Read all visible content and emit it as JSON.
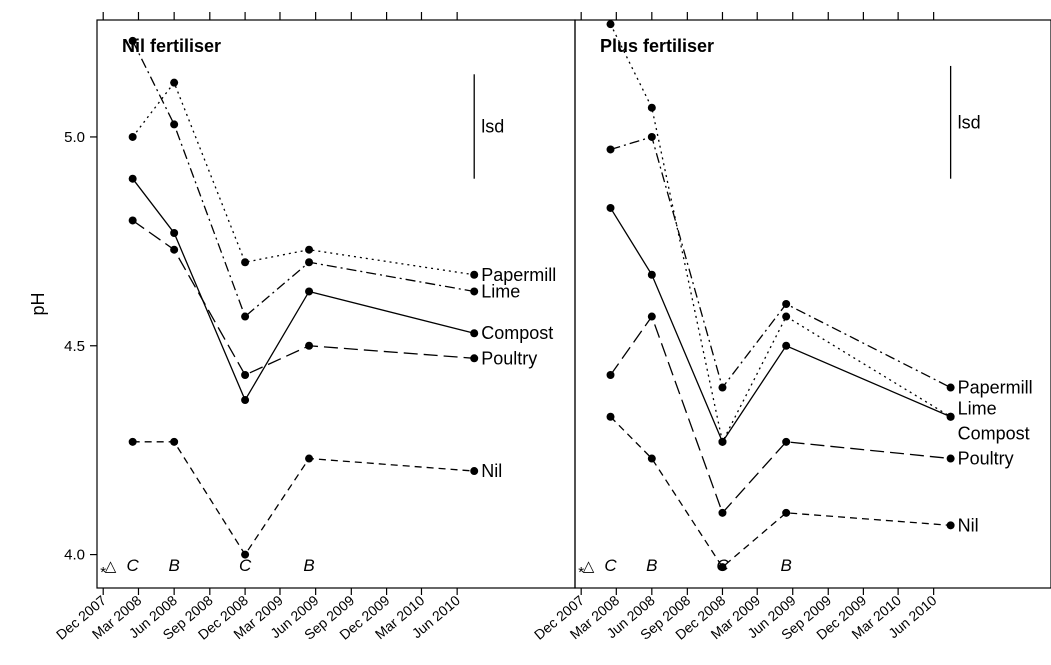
{
  "chart_data": [
    {
      "type": "line",
      "title": "Nil fertiliser",
      "ylabel": "pH",
      "xlabel": "",
      "ylim": [
        3.92,
        5.28
      ],
      "xlim": [
        "2007-11-15",
        "2011-04-01"
      ],
      "yticks": [
        4.0,
        4.5,
        5.0
      ],
      "x_tick_dates": [
        "2007-12-01",
        "2008-03-01",
        "2008-06-01",
        "2008-09-01",
        "2008-12-01",
        "2009-03-01",
        "2009-06-01",
        "2009-09-01",
        "2009-12-01",
        "2010-03-01",
        "2010-06-01"
      ],
      "x_tick_labels": [
        "Dec 2007",
        "Mar 2008",
        "Jun 2008",
        "Sep 2008",
        "Dec 2008",
        "Mar 2009",
        "Jun 2009",
        "Sep 2009",
        "Dec 2009",
        "Mar 2010",
        "Jun 2010"
      ],
      "series": [
        {
          "name": "Papermill",
          "style": "dotted",
          "x": [
            "2008-02-15",
            "2008-06-01",
            "2008-12-01",
            "2009-05-15",
            "2010-07-15"
          ],
          "values": [
            5.0,
            5.13,
            4.7,
            4.73,
            4.67
          ]
        },
        {
          "name": "Lime",
          "style": "dotdash",
          "x": [
            "2008-02-15",
            "2008-06-01",
            "2008-12-01",
            "2009-05-15",
            "2010-07-15"
          ],
          "values": [
            5.23,
            5.03,
            4.57,
            4.7,
            4.63
          ]
        },
        {
          "name": "Compost",
          "style": "solid",
          "x": [
            "2008-02-15",
            "2008-06-01",
            "2008-12-01",
            "2009-05-15",
            "2010-07-15"
          ],
          "values": [
            4.9,
            4.77,
            4.37,
            4.63,
            4.53
          ]
        },
        {
          "name": "Poultry",
          "style": "longdash",
          "x": [
            "2008-02-15",
            "2008-06-01",
            "2008-12-01",
            "2009-05-15",
            "2010-07-15"
          ],
          "values": [
            4.8,
            4.73,
            4.43,
            4.5,
            4.47
          ]
        },
        {
          "name": "Nil",
          "style": "dashed",
          "x": [
            "2008-02-15",
            "2008-06-01",
            "2008-12-01",
            "2009-05-15",
            "2010-07-15"
          ],
          "values": [
            4.27,
            4.27,
            4.0,
            4.23,
            4.2
          ]
        }
      ],
      "lsd": {
        "label": "lsd",
        "x": "2010-07-15",
        "from": 4.9,
        "to": 5.15
      },
      "annotations": [
        {
          "text": "*",
          "x": "2007-12-01",
          "kind": "symbol"
        },
        {
          "text": "△",
          "x": "2007-12-20",
          "kind": "symbol"
        },
        {
          "text": "C",
          "x": "2008-02-15",
          "kind": "letter"
        },
        {
          "text": "B",
          "x": "2008-06-01",
          "kind": "letter"
        },
        {
          "text": "C",
          "x": "2008-12-01",
          "kind": "letter"
        },
        {
          "text": "B",
          "x": "2009-05-15",
          "kind": "letter"
        }
      ]
    },
    {
      "type": "line",
      "title": "Plus fertiliser",
      "ylabel": "",
      "xlabel": "",
      "ylim": [
        3.92,
        5.28
      ],
      "xlim": [
        "2007-11-15",
        "2011-04-01"
      ],
      "yticks": [
        4.0,
        4.5,
        5.0
      ],
      "x_tick_dates": [
        "2007-12-01",
        "2008-03-01",
        "2008-06-01",
        "2008-09-01",
        "2008-12-01",
        "2009-03-01",
        "2009-06-01",
        "2009-09-01",
        "2009-12-01",
        "2010-03-01",
        "2010-06-01"
      ],
      "x_tick_labels": [
        "Dec 2007",
        "Mar 2008",
        "Jun 2008",
        "Sep 2008",
        "Dec 2008",
        "Mar 2009",
        "Jun 2009",
        "Sep 2009",
        "Dec 2009",
        "Mar 2010",
        "Jun 2010"
      ],
      "series": [
        {
          "name": "Papermill",
          "style": "dotdash",
          "x": [
            "2008-02-15",
            "2008-06-01",
            "2008-12-01",
            "2009-05-15",
            "2010-07-15"
          ],
          "values": [
            4.97,
            5.0,
            4.4,
            4.6,
            4.4
          ]
        },
        {
          "name": "Lime",
          "style": "dotted",
          "x": [
            "2008-02-15",
            "2008-06-01",
            "2008-12-01",
            "2009-05-15",
            "2010-07-15"
          ],
          "values": [
            5.27,
            5.07,
            4.27,
            4.57,
            4.33
          ]
        },
        {
          "name": "Compost",
          "style": "solid",
          "x": [
            "2008-02-15",
            "2008-06-01",
            "2008-12-01",
            "2009-05-15",
            "2010-07-15"
          ],
          "values": [
            4.83,
            4.67,
            4.27,
            4.5,
            4.33
          ]
        },
        {
          "name": "Poultry",
          "style": "longdash",
          "x": [
            "2008-02-15",
            "2008-06-01",
            "2008-12-01",
            "2009-05-15",
            "2010-07-15"
          ],
          "values": [
            4.43,
            4.57,
            4.1,
            4.27,
            4.23
          ]
        },
        {
          "name": "Nil",
          "style": "dashed",
          "x": [
            "2008-02-15",
            "2008-06-01",
            "2008-12-01",
            "2009-05-15",
            "2010-07-15"
          ],
          "values": [
            4.33,
            4.23,
            3.97,
            4.1,
            4.07
          ]
        }
      ],
      "lsd": {
        "label": "lsd",
        "x": "2010-07-15",
        "from": 4.9,
        "to": 5.17
      },
      "annotations": [
        {
          "text": "*",
          "x": "2007-12-01",
          "kind": "symbol"
        },
        {
          "text": "△",
          "x": "2007-12-20",
          "kind": "symbol"
        },
        {
          "text": "C",
          "x": "2008-02-15",
          "kind": "letter"
        },
        {
          "text": "B",
          "x": "2008-06-01",
          "kind": "letter"
        },
        {
          "text": "C",
          "x": "2008-12-01",
          "kind": "letter"
        },
        {
          "text": "B",
          "x": "2009-05-15",
          "kind": "letter"
        }
      ],
      "end_labels": {
        "Papermill": 4.4,
        "Lime": 4.35,
        "Compost": 4.29,
        "Poultry": 4.23,
        "Nil": 4.07
      }
    }
  ]
}
